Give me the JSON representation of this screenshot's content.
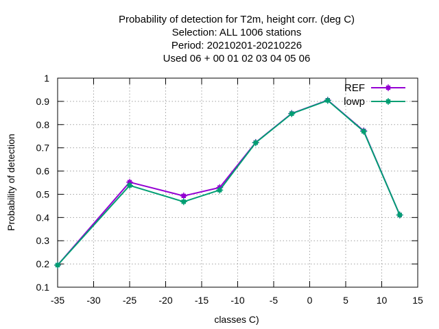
{
  "chart_data": {
    "type": "line",
    "title_lines": [
      "Probability of detection  for T2m, height corr. (deg C)",
      "Selection: ALL   1006 stations",
      "Period: 20210201-20210226",
      "Used  06  + 00 01 02 03 04 05 06"
    ],
    "xlabel": "classes C)",
    "ylabel": "Probability of detection",
    "xlim": [
      -35,
      15
    ],
    "ylim": [
      0.1,
      1
    ],
    "xticks": [
      -35,
      -30,
      -25,
      -20,
      -15,
      -10,
      -5,
      0,
      5,
      10,
      15
    ],
    "yticks": [
      0.1,
      0.2,
      0.3,
      0.4,
      0.5,
      0.6,
      0.7,
      0.8,
      0.9,
      1
    ],
    "xtick_labels": [
      "-35",
      "-30",
      "-25",
      "-20",
      "-15",
      "-10",
      "-5",
      "0",
      "5",
      "10",
      "15"
    ],
    "ytick_labels": [
      "0.1",
      "0.2",
      "0.3",
      "0.4",
      "0.5",
      "0.6",
      "0.7",
      "0.8",
      "0.9",
      "1"
    ],
    "grid": true,
    "legend_position": "top-right",
    "x": [
      -35,
      -25,
      -17.5,
      -12.5,
      -7.5,
      -2.5,
      2.5,
      7.5,
      12.5
    ],
    "series": [
      {
        "name": "REF",
        "color": "#9400d3",
        "values": [
          0.195,
          0.552,
          0.493,
          0.529,
          0.723,
          0.848,
          0.905,
          0.773,
          0.411
        ]
      },
      {
        "name": "lowp",
        "color": "#009e73",
        "values": [
          0.195,
          0.538,
          0.468,
          0.518,
          0.722,
          0.847,
          0.904,
          0.771,
          0.411
        ]
      }
    ]
  }
}
